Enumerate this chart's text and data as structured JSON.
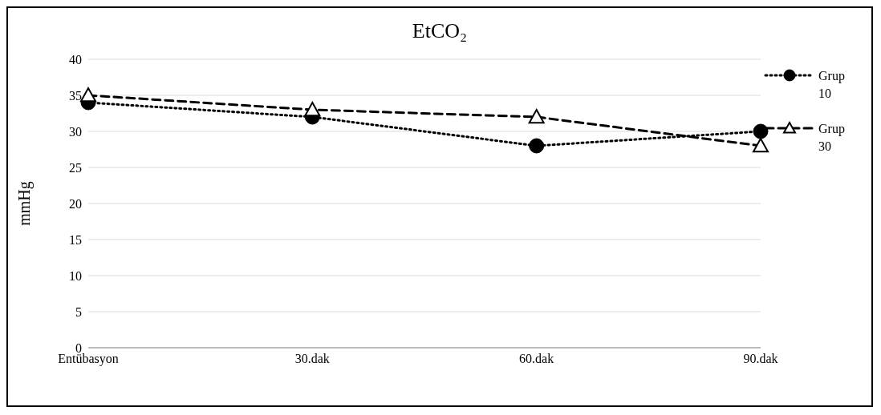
{
  "chart_data": {
    "type": "line",
    "title": "EtCO₂",
    "ylabel": "mmHg",
    "categories": [
      "Entübasyon",
      "30.dak",
      "60.dak",
      "90.dak"
    ],
    "series": [
      {
        "name": "Grup 10",
        "color": "#000000",
        "values": [
          34,
          32,
          28,
          30
        ],
        "marker": "circle",
        "line_style": "dotted"
      },
      {
        "name": "Grup 30",
        "color": "#000000",
        "values": [
          35,
          33,
          32,
          28
        ],
        "marker": "triangle",
        "line_style": "dashed"
      }
    ],
    "ylim": [
      0,
      40
    ],
    "yticks": [
      0,
      5,
      10,
      15,
      20,
      25,
      30,
      35,
      40
    ],
    "grid": "y",
    "legend": "right"
  }
}
